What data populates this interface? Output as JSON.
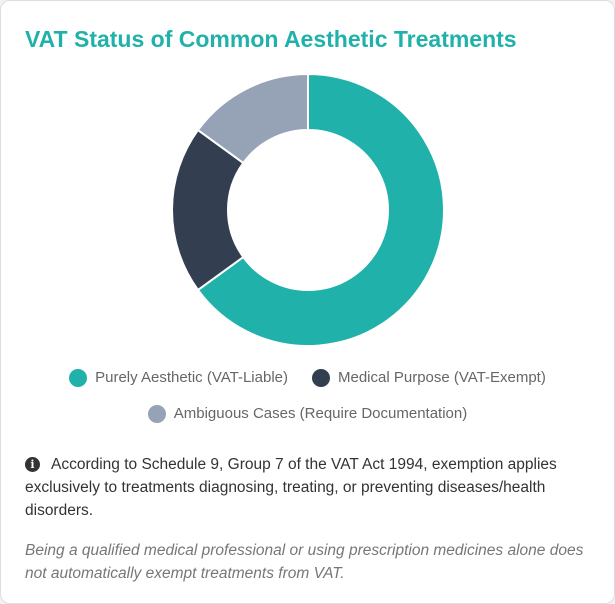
{
  "title": "VAT Status of Common Aesthetic Treatments",
  "colors": {
    "title": "#20b2aa",
    "background": "#ffffff"
  },
  "chart_data": {
    "type": "pie",
    "donut": true,
    "legend_position": "bottom",
    "series": [
      {
        "name": "Purely Aesthetic (VAT-Liable)",
        "value": 65,
        "color": "#20b2aa"
      },
      {
        "name": "Medical Purpose (VAT-Exempt)",
        "value": 20,
        "color": "#333f50"
      },
      {
        "name": "Ambiguous Cases (Require Documentation)",
        "value": 15,
        "color": "#96a3b7"
      }
    ]
  },
  "note": {
    "icon": "info-circle-icon",
    "text": "According to Schedule 9, Group 7 of the VAT Act 1994, exemption applies exclusively to treatments diagnosing, treating, or preventing diseases/health disorders."
  },
  "footnote": "Being a qualified medical professional or using prescription medicines alone does not automatically exempt treatments from VAT."
}
